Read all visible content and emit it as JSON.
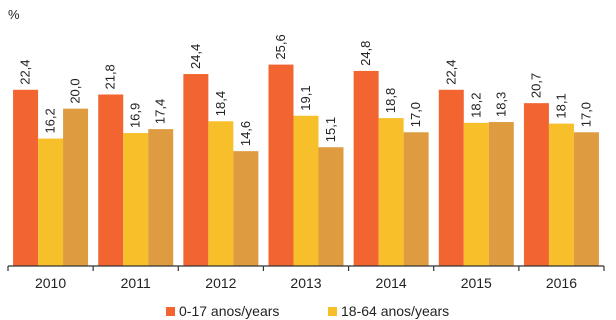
{
  "chart_data": {
    "type": "bar",
    "unit_label": "%",
    "categories": [
      "2010",
      "2011",
      "2012",
      "2013",
      "2014",
      "2015",
      "2016"
    ],
    "value_labels": [
      [
        "22,4",
        "21,8",
        "24,4",
        "25,6",
        "24,8",
        "22,4",
        "20,7"
      ],
      [
        "16,2",
        "16,9",
        "18,4",
        "19,1",
        "18,8",
        "18,2",
        "18,1"
      ],
      [
        "20,0",
        "17,4",
        "14,6",
        "15,1",
        "17,0",
        "18,3",
        "17,0"
      ]
    ],
    "series": [
      {
        "name": "0-17 anos/years",
        "color": "#f26430",
        "values": [
          22.4,
          21.8,
          24.4,
          25.6,
          24.8,
          22.4,
          20.7
        ]
      },
      {
        "name": "18-64 anos/years",
        "color": "#f7bf2a",
        "values": [
          16.2,
          16.9,
          18.4,
          19.1,
          18.8,
          18.2,
          18.1
        ]
      },
      {
        "name": "",
        "color": "#de9b40",
        "values": [
          20.0,
          17.4,
          14.6,
          15.1,
          17.0,
          18.3,
          17.0
        ]
      }
    ],
    "ylim": [
      0,
      30
    ],
    "grid": false,
    "legend_position": "bottom"
  }
}
